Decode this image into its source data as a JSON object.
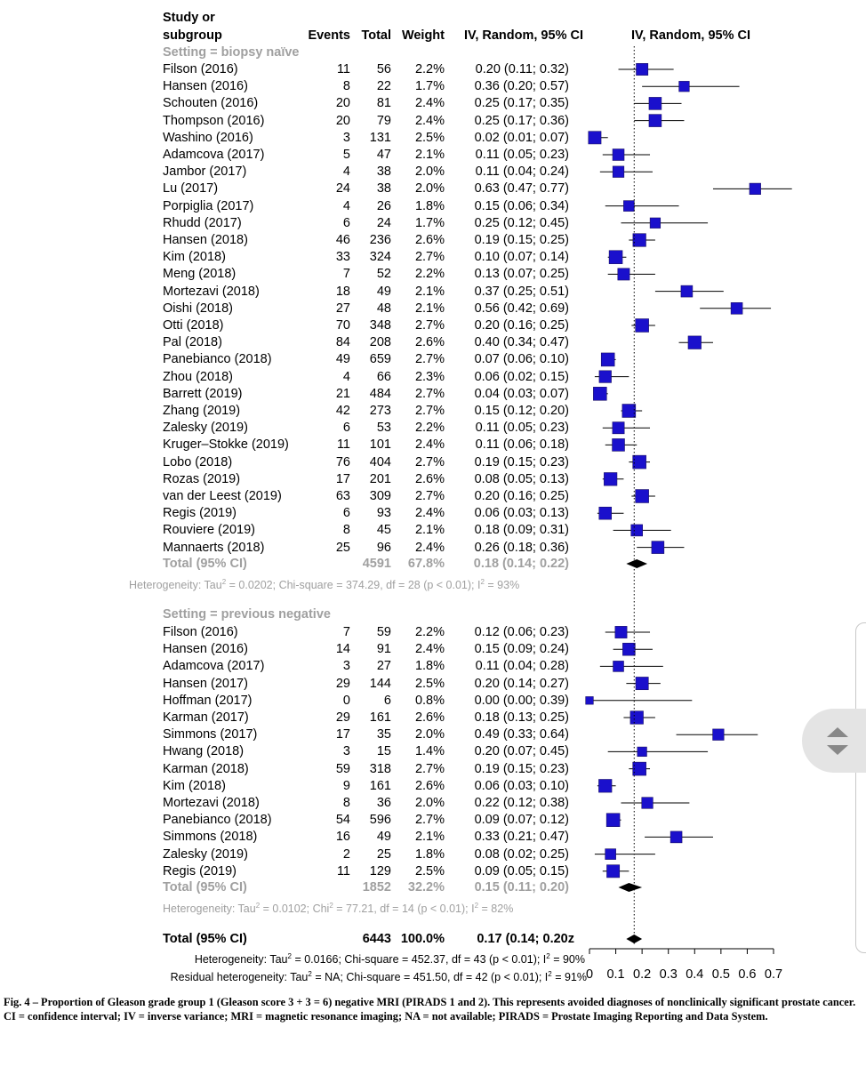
{
  "header": {
    "study_line1": "Study or",
    "study_line2": "subgroup",
    "events": "Events",
    "total": "Total",
    "weight": "Weight",
    "ci": "IV, Random, 95% CI",
    "plot": "IV, Random, 95% CI"
  },
  "groups": [
    {
      "title": "Setting = biopsy naïve",
      "rows": [
        {
          "study": "Filson (2016)",
          "events": "11",
          "total": "56",
          "weight": "2.2%",
          "ci": "0.20 (0.11; 0.32)",
          "est": 0.2,
          "lo": 0.11,
          "hi": 0.32,
          "w": 2.2
        },
        {
          "study": "Hansen (2016)",
          "events": "8",
          "total": "22",
          "weight": "1.7%",
          "ci": "0.36 (0.20; 0.57)",
          "est": 0.36,
          "lo": 0.2,
          "hi": 0.57,
          "w": 1.7
        },
        {
          "study": "Schouten (2016)",
          "events": "20",
          "total": "81",
          "weight": "2.4%",
          "ci": "0.25 (0.17; 0.35)",
          "est": 0.25,
          "lo": 0.17,
          "hi": 0.35,
          "w": 2.4
        },
        {
          "study": "Thompson (2016)",
          "events": "20",
          "total": "79",
          "weight": "2.4%",
          "ci": "0.25 (0.17; 0.36)",
          "est": 0.25,
          "lo": 0.17,
          "hi": 0.36,
          "w": 2.4
        },
        {
          "study": "Washino (2016)",
          "events": "3",
          "total": "131",
          "weight": "2.5%",
          "ci": "0.02 (0.01; 0.07)",
          "est": 0.02,
          "lo": 0.01,
          "hi": 0.07,
          "w": 2.5
        },
        {
          "study": "Adamcova (2017)",
          "events": "5",
          "total": "47",
          "weight": "2.1%",
          "ci": "0.11 (0.05; 0.23)",
          "est": 0.11,
          "lo": 0.05,
          "hi": 0.23,
          "w": 2.1
        },
        {
          "study": "Jambor (2017)",
          "events": "4",
          "total": "38",
          "weight": "2.0%",
          "ci": "0.11 (0.04; 0.24)",
          "est": 0.11,
          "lo": 0.04,
          "hi": 0.24,
          "w": 2.0
        },
        {
          "study": "Lu (2017)",
          "events": "24",
          "total": "38",
          "weight": "2.0%",
          "ci": "0.63 (0.47; 0.77)",
          "est": 0.63,
          "lo": 0.47,
          "hi": 0.77,
          "w": 2.0
        },
        {
          "study": "Porpiglia (2017)",
          "events": "4",
          "total": "26",
          "weight": "1.8%",
          "ci": "0.15 (0.06; 0.34)",
          "est": 0.15,
          "lo": 0.06,
          "hi": 0.34,
          "w": 1.8
        },
        {
          "study": "Rhudd (2017)",
          "events": "6",
          "total": "24",
          "weight": "1.7%",
          "ci": "0.25 (0.12; 0.45)",
          "est": 0.25,
          "lo": 0.12,
          "hi": 0.45,
          "w": 1.7
        },
        {
          "study": "Hansen (2018)",
          "events": "46",
          "total": "236",
          "weight": "2.6%",
          "ci": "0.19 (0.15; 0.25)",
          "est": 0.19,
          "lo": 0.15,
          "hi": 0.25,
          "w": 2.6
        },
        {
          "study": "Kim (2018)",
          "events": "33",
          "total": "324",
          "weight": "2.7%",
          "ci": "0.10 (0.07; 0.14)",
          "est": 0.1,
          "lo": 0.07,
          "hi": 0.14,
          "w": 2.7
        },
        {
          "study": "Meng (2018)",
          "events": "7",
          "total": "52",
          "weight": "2.2%",
          "ci": "0.13 (0.07; 0.25)",
          "est": 0.13,
          "lo": 0.07,
          "hi": 0.25,
          "w": 2.2
        },
        {
          "study": "Mortezavi (2018)",
          "events": "18",
          "total": "49",
          "weight": "2.1%",
          "ci": "0.37 (0.25; 0.51)",
          "est": 0.37,
          "lo": 0.25,
          "hi": 0.51,
          "w": 2.1
        },
        {
          "study": "Oishi (2018)",
          "events": "27",
          "total": "48",
          "weight": "2.1%",
          "ci": "0.56 (0.42; 0.69)",
          "est": 0.56,
          "lo": 0.42,
          "hi": 0.69,
          "w": 2.1
        },
        {
          "study": "Otti (2018)",
          "events": "70",
          "total": "348",
          "weight": "2.7%",
          "ci": "0.20 (0.16; 0.25)",
          "est": 0.2,
          "lo": 0.16,
          "hi": 0.25,
          "w": 2.7
        },
        {
          "study": "Pal (2018)",
          "events": "84",
          "total": "208",
          "weight": "2.6%",
          "ci": "0.40 (0.34; 0.47)",
          "est": 0.4,
          "lo": 0.34,
          "hi": 0.47,
          "w": 2.6
        },
        {
          "study": "Panebianco (2018)",
          "events": "49",
          "total": "659",
          "weight": "2.7%",
          "ci": "0.07 (0.06; 0.10)",
          "est": 0.07,
          "lo": 0.06,
          "hi": 0.1,
          "w": 2.7
        },
        {
          "study": "Zhou (2018)",
          "events": "4",
          "total": "66",
          "weight": "2.3%",
          "ci": "0.06 (0.02; 0.15)",
          "est": 0.06,
          "lo": 0.02,
          "hi": 0.15,
          "w": 2.3
        },
        {
          "study": "Barrett (2019)",
          "events": "21",
          "total": "484",
          "weight": "2.7%",
          "ci": "0.04 (0.03; 0.07)",
          "est": 0.04,
          "lo": 0.03,
          "hi": 0.07,
          "w": 2.7
        },
        {
          "study": "Zhang (2019)",
          "events": "42",
          "total": "273",
          "weight": "2.7%",
          "ci": "0.15 (0.12; 0.20)",
          "est": 0.15,
          "lo": 0.12,
          "hi": 0.2,
          "w": 2.7
        },
        {
          "study": "Zalesky (2019)",
          "events": "6",
          "total": "53",
          "weight": "2.2%",
          "ci": "0.11 (0.05; 0.23)",
          "est": 0.11,
          "lo": 0.05,
          "hi": 0.23,
          "w": 2.2
        },
        {
          "study": "Kruger–Stokke (2019)",
          "events": "11",
          "total": "101",
          "weight": "2.4%",
          "ci": "0.11 (0.06; 0.18)",
          "est": 0.11,
          "lo": 0.06,
          "hi": 0.18,
          "w": 2.4
        },
        {
          "study": "Lobo (2018)",
          "events": "76",
          "total": "404",
          "weight": "2.7%",
          "ci": "0.19 (0.15; 0.23)",
          "est": 0.19,
          "lo": 0.15,
          "hi": 0.23,
          "w": 2.7
        },
        {
          "study": "Rozas (2019)",
          "events": "17",
          "total": "201",
          "weight": "2.6%",
          "ci": "0.08 (0.05; 0.13)",
          "est": 0.08,
          "lo": 0.05,
          "hi": 0.13,
          "w": 2.6
        },
        {
          "study": "van der Leest (2019)",
          "events": "63",
          "total": "309",
          "weight": "2.7%",
          "ci": "0.20 (0.16; 0.25)",
          "est": 0.2,
          "lo": 0.16,
          "hi": 0.25,
          "w": 2.7
        },
        {
          "study": "Regis (2019)",
          "events": "6",
          "total": "93",
          "weight": "2.4%",
          "ci": "0.06 (0.03; 0.13)",
          "est": 0.06,
          "lo": 0.03,
          "hi": 0.13,
          "w": 2.4
        },
        {
          "study": "Rouviere (2019)",
          "events": "8",
          "total": "45",
          "weight": "2.1%",
          "ci": "0.18 (0.09; 0.31)",
          "est": 0.18,
          "lo": 0.09,
          "hi": 0.31,
          "w": 2.1
        },
        {
          "study": "Mannaerts (2018)",
          "events": "25",
          "total": "96",
          "weight": "2.4%",
          "ci": "0.26 (0.18; 0.36)",
          "est": 0.26,
          "lo": 0.18,
          "hi": 0.36,
          "w": 2.4
        }
      ],
      "total": {
        "label": "Total (95% CI)",
        "total": "4591",
        "weight": "67.8%",
        "ci": "0.18 (0.14; 0.22)",
        "est": 0.18,
        "lo": 0.14,
        "hi": 0.22
      },
      "het": {
        "pre": "Heterogeneity: Tau",
        "mid": " = 0.0202; Chi-square = 374.29, df = 28 (p < 0.01); I",
        "post": " = 93%"
      }
    },
    {
      "title": "Setting = previous negative",
      "rows": [
        {
          "study": "Filson (2016)",
          "events": "7",
          "total": "59",
          "weight": "2.2%",
          "ci": "0.12 (0.06; 0.23)",
          "est": 0.12,
          "lo": 0.06,
          "hi": 0.23,
          "w": 2.2
        },
        {
          "study": "Hansen (2016)",
          "events": "14",
          "total": "91",
          "weight": "2.4%",
          "ci": "0.15 (0.09; 0.24)",
          "est": 0.15,
          "lo": 0.09,
          "hi": 0.24,
          "w": 2.4
        },
        {
          "study": "Adamcova (2017)",
          "events": "3",
          "total": "27",
          "weight": "1.8%",
          "ci": "0.11 (0.04; 0.28)",
          "est": 0.11,
          "lo": 0.04,
          "hi": 0.28,
          "w": 1.8
        },
        {
          "study": "Hansen (2017)",
          "events": "29",
          "total": "144",
          "weight": "2.5%",
          "ci": "0.20 (0.14; 0.27)",
          "est": 0.2,
          "lo": 0.14,
          "hi": 0.27,
          "w": 2.5
        },
        {
          "study": "Hoffman (2017)",
          "events": "0",
          "total": "6",
          "weight": "0.8%",
          "ci": "0.00 (0.00; 0.39)",
          "est": 0.0,
          "lo": 0.0,
          "hi": 0.39,
          "w": 0.8
        },
        {
          "study": "Karman (2017)",
          "events": "29",
          "total": "161",
          "weight": "2.6%",
          "ci": "0.18 (0.13; 0.25)",
          "est": 0.18,
          "lo": 0.13,
          "hi": 0.25,
          "w": 2.6
        },
        {
          "study": "Simmons (2017)",
          "events": "17",
          "total": "35",
          "weight": "2.0%",
          "ci": "0.49 (0.33; 0.64)",
          "est": 0.49,
          "lo": 0.33,
          "hi": 0.64,
          "w": 2.0
        },
        {
          "study": "Hwang (2018)",
          "events": "3",
          "total": "15",
          "weight": "1.4%",
          "ci": "0.20 (0.07; 0.45)",
          "est": 0.2,
          "lo": 0.07,
          "hi": 0.45,
          "w": 1.4
        },
        {
          "study": "Karman (2018)",
          "events": "59",
          "total": "318",
          "weight": "2.7%",
          "ci": "0.19 (0.15; 0.23)",
          "est": 0.19,
          "lo": 0.15,
          "hi": 0.23,
          "w": 2.7
        },
        {
          "study": "Kim (2018)",
          "events": "9",
          "total": "161",
          "weight": "2.6%",
          "ci": "0.06 (0.03; 0.10)",
          "est": 0.06,
          "lo": 0.03,
          "hi": 0.1,
          "w": 2.6
        },
        {
          "study": "Mortezavi (2018)",
          "events": "8",
          "total": "36",
          "weight": "2.0%",
          "ci": "0.22 (0.12; 0.38)",
          "est": 0.22,
          "lo": 0.12,
          "hi": 0.38,
          "w": 2.0
        },
        {
          "study": "Panebianco (2018)",
          "events": "54",
          "total": "596",
          "weight": "2.7%",
          "ci": "0.09 (0.07; 0.12)",
          "est": 0.09,
          "lo": 0.07,
          "hi": 0.12,
          "w": 2.7
        },
        {
          "study": "Simmons (2018)",
          "events": "16",
          "total": "49",
          "weight": "2.1%",
          "ci": "0.33 (0.21; 0.47)",
          "est": 0.33,
          "lo": 0.21,
          "hi": 0.47,
          "w": 2.1
        },
        {
          "study": "Zalesky (2019)",
          "events": "2",
          "total": "25",
          "weight": "1.8%",
          "ci": "0.08 (0.02; 0.25)",
          "est": 0.08,
          "lo": 0.02,
          "hi": 0.25,
          "w": 1.8
        },
        {
          "study": "Regis (2019)",
          "events": "11",
          "total": "129",
          "weight": "2.5%",
          "ci": "0.09 (0.05; 0.15)",
          "est": 0.09,
          "lo": 0.05,
          "hi": 0.15,
          "w": 2.5
        }
      ],
      "total": {
        "label": "Total (95% CI)",
        "total": "1852",
        "weight": "32.2%",
        "ci": "0.15 (0.11; 0.20)",
        "est": 0.15,
        "lo": 0.11,
        "hi": 0.2
      },
      "het": {
        "pre": "Heterogeneity: Tau",
        "mid": " = 0.0102; Chi",
        "mid2": " = 77.21, df = 14 (p < 0.01); I",
        "post": " = 82%"
      }
    }
  ],
  "overall": {
    "label": "Total (95% CI)",
    "total": "6443",
    "weight": "100.0%",
    "ci": "0.17 (0.14; 0.20z",
    "est": 0.17,
    "lo": 0.14,
    "hi": 0.2,
    "het1": {
      "pre": "Heterogeneity: Tau",
      "mid": " = 0.0166; Chi-square = 452.37, df = 43 (p < 0.01); I",
      "post": " = 90%"
    },
    "het2": {
      "pre": "Residual heterogeneity: Tau",
      "mid": " = NA; Chi-square = 451.50, df = 42 (p < 0.01); I",
      "post": " = 91%"
    }
  },
  "sup2": "2",
  "chart_data": {
    "type": "forest",
    "xlim": [
      0,
      0.7
    ],
    "x_ticks": [
      "0",
      "0.1",
      "0.2",
      "0.3",
      "0.4",
      "0.5",
      "0.6",
      "0.7"
    ],
    "reference_line": 0.17,
    "square_color": "#1a10cc",
    "diamond_color": "#000000"
  },
  "caption": {
    "fig_label": "Fig. 4 – ",
    "fig_text": "Proportion of Gleason grade group 1 (Gleason score 3 + 3 = 6) negative MRI (PIRADS 1 and 2). This represents avoided diagnoses of nonclinically significant prostate cancer.",
    "abbrev": "CI = confidence interval; IV = inverse variance; MRI = magnetic resonance imaging; NA = not available; PIRADS = Prostate Imaging Reporting and Data System."
  }
}
